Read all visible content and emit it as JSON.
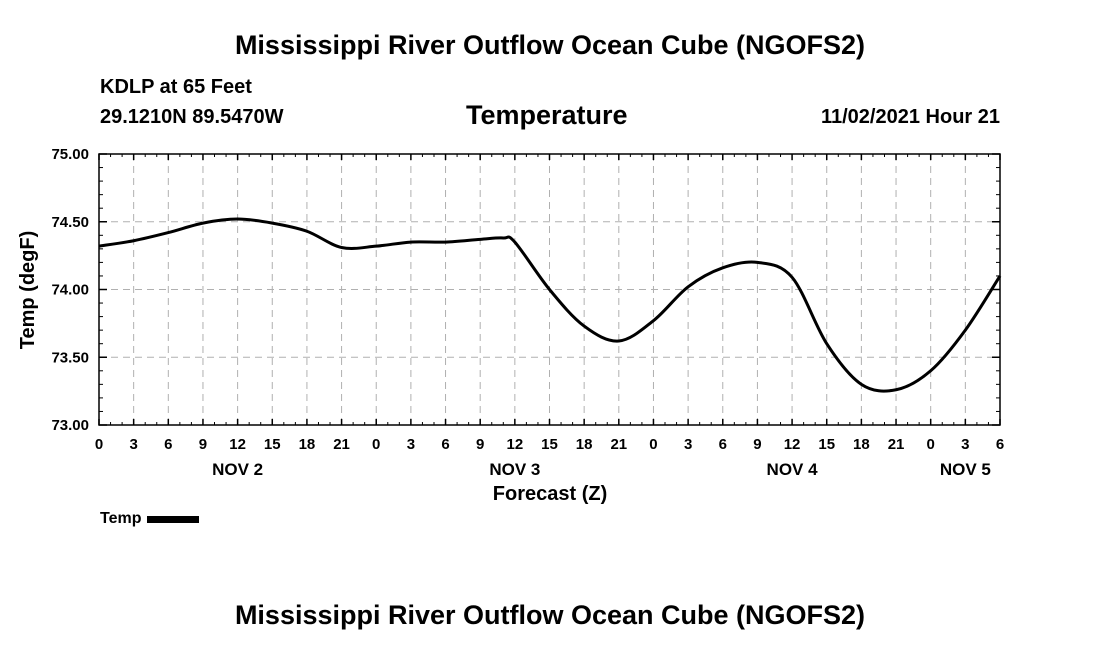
{
  "header": {
    "main_title": "Mississippi River Outflow Ocean Cube (NGOFS2)",
    "station": "KDLP at 65 Feet",
    "coordinates": "29.1210N  89.5470W",
    "chart_title": "Temperature",
    "datetime": "11/02/2021 Hour 21"
  },
  "footer": {
    "title": "Mississippi River Outflow Ocean Cube (NGOFS2)"
  },
  "legend": {
    "label": "Temp",
    "color": "#000000"
  },
  "chart_data": {
    "type": "line",
    "title": "Temperature",
    "xlabel": "Forecast (Z)",
    "ylabel": "Temp (degF)",
    "ylim": [
      73.0,
      75.0
    ],
    "yticks": [
      "73.00",
      "73.50",
      "74.00",
      "74.50",
      "75.00"
    ],
    "xlim": [
      0,
      78
    ],
    "xticks": [
      "0",
      "3",
      "6",
      "9",
      "12",
      "15",
      "18",
      "21",
      "0",
      "3",
      "6",
      "9",
      "12",
      "15",
      "18",
      "21",
      "0",
      "3",
      "6",
      "9",
      "12",
      "15",
      "18",
      "21",
      "0",
      "3",
      "6"
    ],
    "date_labels": [
      {
        "label": "NOV 2",
        "hour": 12
      },
      {
        "label": "NOV 3",
        "hour": 36
      },
      {
        "label": "NOV 4",
        "hour": 60
      },
      {
        "label": "NOV 5",
        "hour": 75
      }
    ],
    "grid": true,
    "series": [
      {
        "name": "Temp",
        "color": "#000000",
        "x": [
          0,
          3,
          6,
          9,
          12,
          15,
          18,
          21,
          24,
          27,
          30,
          33,
          35,
          36,
          39,
          42,
          45,
          48,
          51,
          54,
          57,
          60,
          63,
          66,
          69,
          72,
          75,
          78
        ],
        "values": [
          74.32,
          74.36,
          74.42,
          74.49,
          74.52,
          74.49,
          74.43,
          74.31,
          74.32,
          74.35,
          74.35,
          74.37,
          74.38,
          74.35,
          74.0,
          73.73,
          73.62,
          73.77,
          74.02,
          74.16,
          74.2,
          74.09,
          73.6,
          73.3,
          73.26,
          73.4,
          73.7,
          74.1
        ]
      }
    ]
  }
}
